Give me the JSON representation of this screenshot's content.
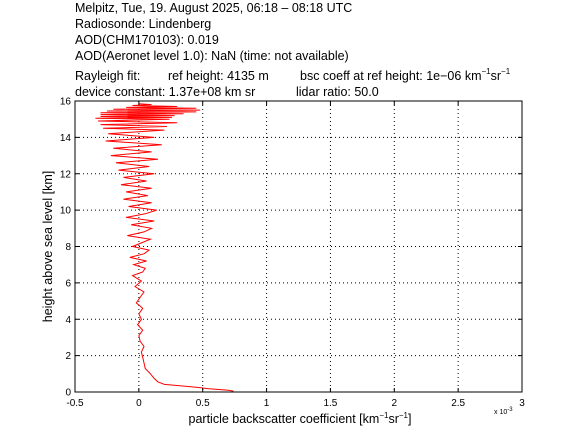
{
  "header": {
    "line1": "Melpitz, Tue, 19. August 2025, 06:18 – 08:18 UTC",
    "line2": "Radiosonde: Lindenberg",
    "line3": "AOD(CHM170103): 0.019",
    "line4": "AOD(Aeronet level 1.0): NaN   (time: not available)",
    "rayleigh_label": "Rayleigh fit:",
    "ref_height": "ref height: 4135 m",
    "bsc_coeff_prefix": "bsc coeff at ref height: 1e−06 km",
    "device_constant": "device constant: 1.37e+08 km sr",
    "lidar_ratio": "lidar ratio: 50.0"
  },
  "chart_data": {
    "type": "line",
    "xlabel_text": "particle backscatter coefficient [km",
    "xlabel_exp1": "−1",
    "xlabel_mid": "sr",
    "xlabel_exp2": "−1",
    "xlabel_end": "]",
    "ylabel": "height above sea level [km]",
    "x_multiplier": "x 10",
    "x_multiplier_exp": "-3",
    "xlim": [
      -0.5,
      3
    ],
    "ylim": [
      0,
      16
    ],
    "x_ticks": [
      -0.5,
      0,
      0.5,
      1,
      1.5,
      2,
      2.5,
      3
    ],
    "x_tick_labels": [
      "-0.5",
      "0",
      "0.5",
      "1",
      "1.5",
      "2",
      "2.5",
      "3"
    ],
    "y_ticks": [
      0,
      2,
      4,
      6,
      8,
      10,
      12,
      14,
      16
    ],
    "y_tick_labels": [
      "0",
      "2",
      "4",
      "6",
      "8",
      "10",
      "12",
      "14",
      "16"
    ],
    "grid": true,
    "series": [
      {
        "color": "#ff0000",
        "x": [
          0.74,
          0.7,
          0.55,
          0.45,
          0.32,
          0.2,
          0.15,
          0.12,
          0.09,
          0.05,
          0.04,
          0.03,
          0.02,
          0.04,
          0.01,
          0.0,
          0.03,
          -0.01,
          0.02,
          0.0,
          0.03,
          -0.02,
          0.01,
          0.04,
          -0.03,
          0.02,
          -0.05,
          0.03,
          0.05,
          -0.04,
          0.06,
          -0.07,
          0.04,
          0.08,
          -0.05,
          0.02,
          0.09,
          -0.09,
          0.04,
          0.1,
          -0.06,
          0.12,
          -0.1,
          0.05,
          0.14,
          -0.08,
          0.1,
          -0.12,
          0.07,
          -0.1,
          0.1,
          -0.14,
          0.06,
          -0.12,
          0.12,
          -0.16,
          0.08,
          -0.18,
          0.15,
          -0.22,
          0.1,
          -0.2,
          0.18,
          -0.26,
          0.12,
          -0.24,
          0.2,
          -0.28,
          0.22,
          -0.3,
          0.3,
          -0.32,
          0.24,
          -0.34,
          0.26,
          -0.3,
          0.28,
          -0.3,
          0.35,
          -0.3,
          0.45,
          -0.25,
          0.48,
          -0.2,
          0.45,
          -0.1,
          0.3,
          -0.05,
          0.1,
          0.0
        ],
        "y": [
          0.05,
          0.1,
          0.18,
          0.26,
          0.34,
          0.42,
          0.55,
          0.75,
          1.0,
          1.3,
          1.6,
          1.9,
          2.2,
          2.5,
          2.8,
          3.1,
          3.4,
          3.7,
          4.0,
          4.3,
          4.6,
          4.9,
          5.2,
          5.5,
          5.8,
          6.1,
          6.4,
          6.6,
          6.8,
          7.0,
          7.2,
          7.4,
          7.6,
          7.8,
          8.0,
          8.2,
          8.4,
          8.6,
          8.8,
          9.0,
          9.2,
          9.4,
          9.6,
          9.8,
          10.0,
          10.2,
          10.4,
          10.6,
          10.8,
          11.0,
          11.2,
          11.4,
          11.6,
          11.8,
          12.0,
          12.2,
          12.4,
          12.6,
          12.8,
          13.0,
          13.2,
          13.4,
          13.6,
          13.8,
          14.0,
          14.2,
          14.4,
          14.5,
          14.6,
          14.7,
          14.8,
          14.9,
          15.0,
          15.05,
          15.1,
          15.15,
          15.2,
          15.25,
          15.3,
          15.35,
          15.4,
          15.45,
          15.5,
          15.55,
          15.6,
          15.65,
          15.7,
          15.75,
          15.8,
          15.85
        ]
      }
    ]
  }
}
